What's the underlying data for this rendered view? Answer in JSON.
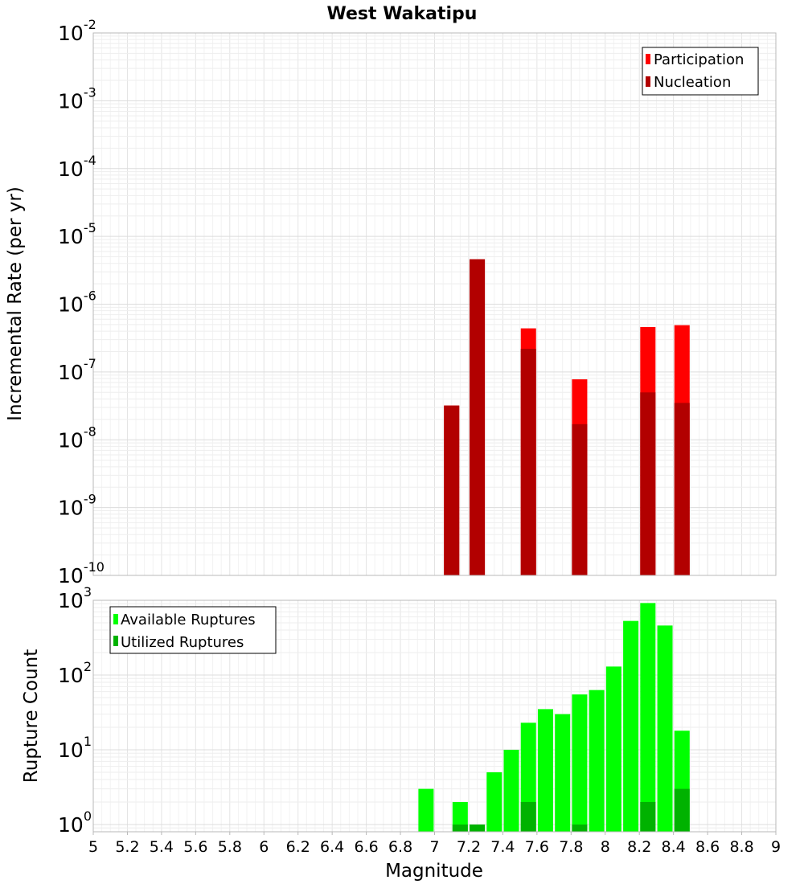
{
  "chart_data": [
    {
      "type": "bar",
      "title": "West Wakatipu",
      "xlabel": "",
      "ylabel": "Incremental Rate (per yr)",
      "xlim": [
        5,
        9
      ],
      "ylim": [
        1e-10,
        0.01
      ],
      "yscale": "log",
      "y_tick_exponents": [
        "-10",
        "-9",
        "-8",
        "-7",
        "-6",
        "-5",
        "-4",
        "-3",
        "-2"
      ],
      "grid": true,
      "legend_position": "top-right",
      "series": [
        {
          "name": "Participation",
          "color": "#ff0000",
          "x": [
            7.1,
            7.25,
            7.55,
            7.85,
            8.25,
            8.45
          ],
          "values": [
            3.2e-08,
            4.6e-06,
            4.4e-07,
            7.8e-08,
            4.6e-07,
            4.9e-07
          ]
        },
        {
          "name": "Nucleation",
          "color": "#b20000",
          "x": [
            7.1,
            7.25,
            7.55,
            7.85,
            8.25,
            8.45
          ],
          "values": [
            3.2e-08,
            4.6e-06,
            2.2e-07,
            1.7e-08,
            5e-08,
            3.5e-08
          ]
        }
      ]
    },
    {
      "type": "bar",
      "title": "",
      "xlabel": "Magnitude",
      "ylabel": "Rupture Count",
      "xlim": [
        5,
        9
      ],
      "ylim": [
        0.8,
        1000
      ],
      "yscale": "log",
      "y_tick_exponents": [
        "0",
        "1",
        "2",
        "3"
      ],
      "x_ticks": [
        "5",
        "5.2",
        "5.4",
        "5.6",
        "5.8",
        "6",
        "6.2",
        "6.4",
        "6.6",
        "6.8",
        "7",
        "7.2",
        "7.4",
        "7.6",
        "7.8",
        "8",
        "8.2",
        "8.4",
        "8.6",
        "8.8",
        "9"
      ],
      "grid": true,
      "legend_position": "top-left",
      "series": [
        {
          "name": "Available Ruptures",
          "color": "#00ff00",
          "x": [
            6.95,
            7.15,
            7.25,
            7.35,
            7.45,
            7.55,
            7.65,
            7.75,
            7.85,
            7.95,
            8.05,
            8.15,
            8.25,
            8.35,
            8.45
          ],
          "values": [
            3,
            2,
            1,
            5,
            10,
            23,
            35,
            30,
            55,
            63,
            130,
            530,
            920,
            460,
            18
          ]
        },
        {
          "name": "Utilized Ruptures",
          "color": "#00b200",
          "x": [
            7.15,
            7.25,
            7.55,
            7.85,
            8.25,
            8.45
          ],
          "values": [
            1,
            1,
            2,
            1,
            2,
            3
          ]
        }
      ]
    }
  ]
}
